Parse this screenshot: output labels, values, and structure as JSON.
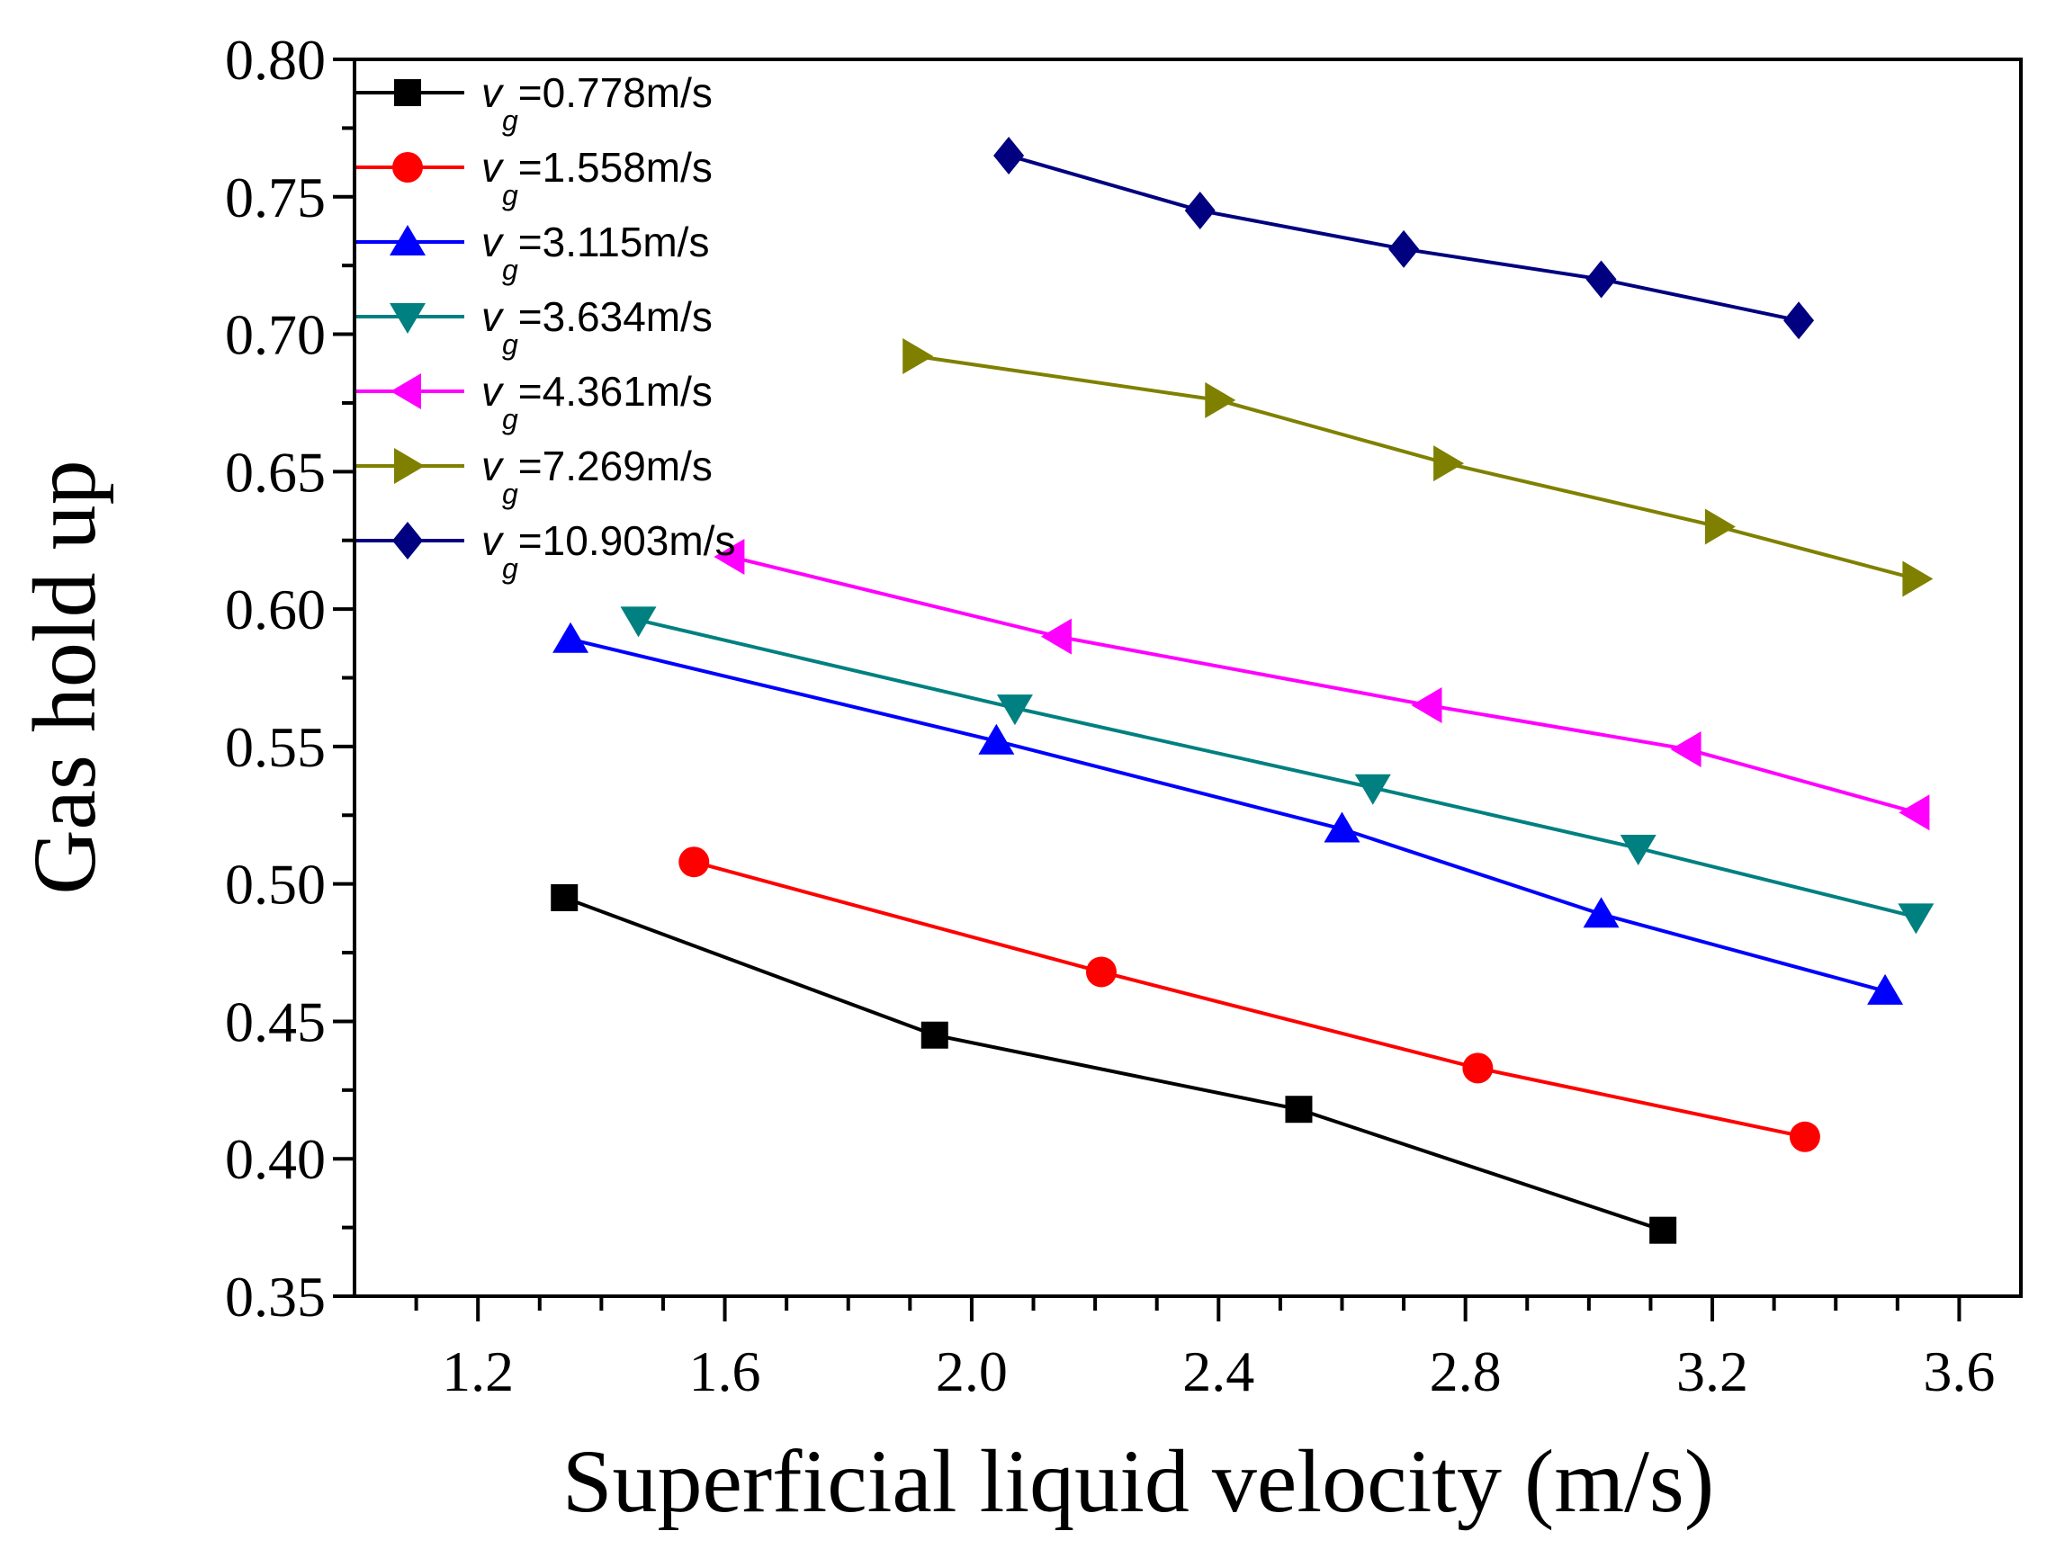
{
  "chart_data": {
    "type": "line",
    "title": "",
    "xlabel": "Superficial liquid velocity (m/s)",
    "ylabel": "Gas hold up",
    "xlim": [
      1.0,
      3.7
    ],
    "ylim": [
      0.35,
      0.8
    ],
    "xticks": [
      "1.2",
      "1.6",
      "2.0",
      "2.4",
      "2.8",
      "3.2",
      "3.6"
    ],
    "yticks": [
      "0.35",
      "0.40",
      "0.45",
      "0.50",
      "0.55",
      "0.60",
      "0.65",
      "0.70",
      "0.75",
      "0.80"
    ],
    "grid": false,
    "legend_position": "top-left",
    "series": [
      {
        "name": "vg=0.778m/s",
        "label_var": "v",
        "label_sub": "g",
        "label_rest": "=0.778m/s",
        "color": "#000000",
        "marker": "square",
        "x": [
          1.34,
          1.94,
          2.53,
          3.12
        ],
        "y": [
          0.495,
          0.445,
          0.418,
          0.374
        ]
      },
      {
        "name": "vg=1.558m/s",
        "label_var": "v",
        "label_sub": "g",
        "label_rest": "=1.558m/s",
        "color": "#ff0000",
        "marker": "circle",
        "x": [
          1.55,
          2.21,
          2.82,
          3.35
        ],
        "y": [
          0.508,
          0.468,
          0.433,
          0.408
        ]
      },
      {
        "name": "vg=3.115m/s",
        "label_var": "v",
        "label_sub": "g",
        "label_rest": "=3.115m/s",
        "color": "#0000ff",
        "marker": "triangle-up",
        "x": [
          1.35,
          2.04,
          2.6,
          3.02,
          3.48
        ],
        "y": [
          0.589,
          0.552,
          0.52,
          0.489,
          0.461
        ]
      },
      {
        "name": "vg=3.634m/s",
        "label_var": "v",
        "label_sub": "g",
        "label_rest": "=3.634m/s",
        "color": "#008080",
        "marker": "triangle-down",
        "x": [
          1.46,
          2.07,
          2.65,
          3.08,
          3.53
        ],
        "y": [
          0.596,
          0.564,
          0.535,
          0.513,
          0.488
        ]
      },
      {
        "name": "vg=4.361m/s",
        "label_var": "v",
        "label_sub": "g",
        "label_rest": "=4.361m/s",
        "color": "#ff00ff",
        "marker": "triangle-left",
        "x": [
          1.61,
          2.14,
          2.74,
          3.16,
          3.53
        ],
        "y": [
          0.619,
          0.59,
          0.565,
          0.549,
          0.526
        ]
      },
      {
        "name": "vg=7.269m/s",
        "label_var": "v",
        "label_sub": "g",
        "label_rest": "=7.269m/s",
        "color": "#808000",
        "marker": "triangle-right",
        "x": [
          1.91,
          2.4,
          2.77,
          3.21,
          3.53
        ],
        "y": [
          0.692,
          0.676,
          0.653,
          0.63,
          0.611
        ]
      },
      {
        "name": "vg=10.903m/s",
        "label_var": "v",
        "label_sub": "g",
        "label_rest": "=10.903m/s",
        "color": "#000080",
        "marker": "diamond",
        "x": [
          2.06,
          2.37,
          2.7,
          3.02,
          3.34
        ],
        "y": [
          0.765,
          0.745,
          0.731,
          0.72,
          0.705
        ]
      }
    ]
  }
}
